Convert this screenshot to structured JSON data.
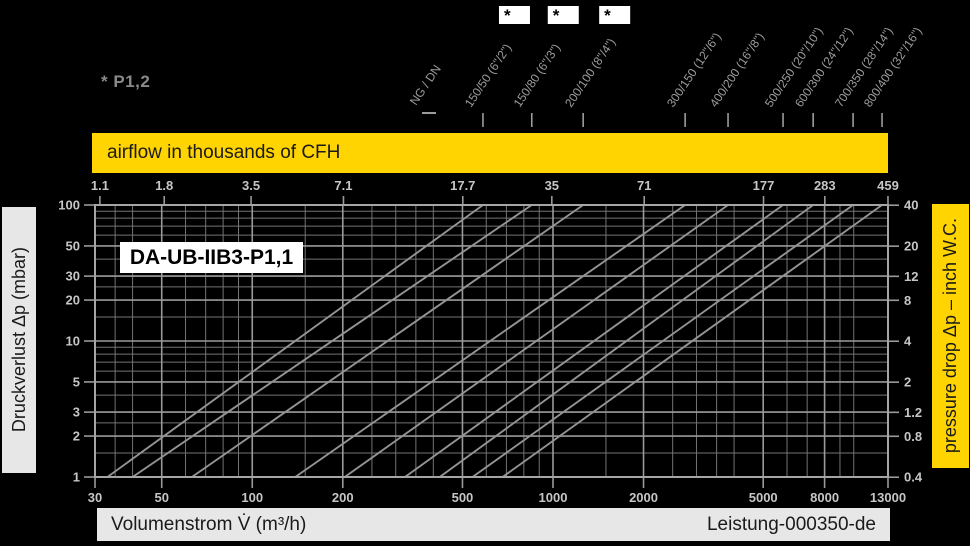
{
  "meta": {
    "footnote": "* P1,2",
    "footnote_marker": "*",
    "model_label": "DA-UB-IIB3-P1,1",
    "size_header": "NG / DN",
    "doc_ref": "Leistung-000350-de"
  },
  "banners": {
    "top": "airflow in thousands of CFH",
    "left": "Druckverlust Δp (mbar)",
    "right": "pressure drop Δp – inch W.C.",
    "bottom": "Volumenstrom V̇ (m³/h)"
  },
  "chart_data": {
    "type": "line",
    "x_scale": "log",
    "y_scale": "log",
    "x_range_m3h": [
      30,
      13000
    ],
    "y_range_mbar": [
      1,
      100
    ],
    "x_ticks_bottom_m3h": [
      "30",
      "50",
      "100",
      "200",
      "500",
      "1000",
      "2000",
      "5000",
      "8000",
      "13000"
    ],
    "x_ticks_top_thousands_cfh": [
      "1.1",
      "1.8",
      "3.5",
      "7.1",
      "17.7",
      "35",
      "71",
      "177",
      "283",
      "459"
    ],
    "y_ticks_left_mbar": [
      "100",
      "50",
      "30",
      "20",
      "10",
      "5",
      "3",
      "2",
      "1"
    ],
    "y_ticks_right_inch_wc": [
      "40",
      "20",
      "12",
      "8",
      "4",
      "2",
      "1.2",
      "0.8",
      "0.4"
    ],
    "grid_minor_multipliers_x": [
      1,
      1.5,
      2,
      2.5,
      3,
      3.5,
      4,
      5,
      6,
      7,
      8,
      9
    ],
    "grid_minor_multipliers_y": [
      1,
      1.5,
      2,
      2.5,
      3,
      4,
      5,
      6,
      7,
      8,
      9
    ],
    "series": [
      {
        "size": "150/50 (6\"/2\")",
        "starred": true,
        "v_at_1mbar": 33,
        "v_at_100mbar": 585
      },
      {
        "size": "150/80 (6\"/3\")",
        "starred": true,
        "v_at_1mbar": 40,
        "v_at_100mbar": 850
      },
      {
        "size": "200/100 (8\"/4\")",
        "starred": true,
        "v_at_1mbar": 63,
        "v_at_100mbar": 1260
      },
      {
        "size": "300/150 (12\"/6\")",
        "starred": false,
        "v_at_1mbar": 139,
        "v_at_100mbar": 2750
      },
      {
        "size": "400/200 (16\"/8\")",
        "starred": false,
        "v_at_1mbar": 203,
        "v_at_100mbar": 3820
      },
      {
        "size": "500/250 (20\"/10\")",
        "starred": false,
        "v_at_1mbar": 322,
        "v_at_100mbar": 5820
      },
      {
        "size": "600/300 (24\"/12\")",
        "starred": false,
        "v_at_1mbar": 420,
        "v_at_100mbar": 7330
      },
      {
        "size": "700/350 (28\"/14\")",
        "starred": false,
        "v_at_1mbar": 540,
        "v_at_100mbar": 9950
      },
      {
        "size": "800/400 (32\"/16\")",
        "starred": false,
        "v_at_1mbar": 680,
        "v_at_100mbar": 12420
      }
    ],
    "unit_conversions": {
      "cfh_per_m3h": 35.3147,
      "inch_wc_per_mbar": 0.4015
    }
  },
  "colors": {
    "background": "#000000",
    "yellow": "#ffd400",
    "banner_gray": "#e7e7e7",
    "grid_minor": "#737373",
    "grid_major": "#9a9a9a",
    "frame": "#a5a5a5",
    "curve": "#949494",
    "tick_text": "#c6c6c6",
    "size_label_text": "#9c9c9c",
    "footnote_text": "#8a8a8a",
    "star_box_bg": "#ffffff",
    "star_text": "#000000"
  }
}
